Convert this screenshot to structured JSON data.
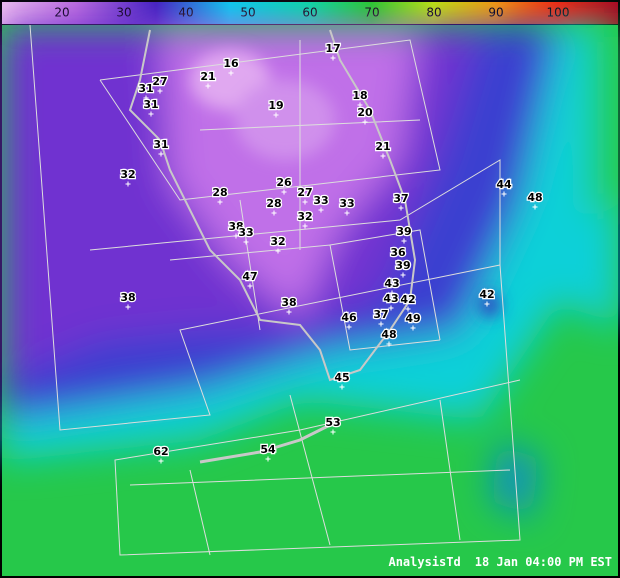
{
  "colorbar": {
    "ticks": [
      20,
      30,
      40,
      50,
      60,
      70,
      80,
      90,
      100
    ]
  },
  "stations": [
    17,
    16,
    21,
    27,
    31,
    31,
    19,
    18,
    20,
    31,
    21,
    32,
    26,
    44,
    48,
    28,
    27,
    33,
    33,
    37,
    28,
    32,
    38,
    33,
    39,
    32,
    36,
    39,
    47,
    43,
    38,
    42,
    43,
    42,
    38,
    46,
    37,
    49,
    48,
    45,
    53,
    62,
    54
  ],
  "footer": {
    "product": "AnalysisTd",
    "time": "18 Jan 04:00 PM EST"
  }
}
